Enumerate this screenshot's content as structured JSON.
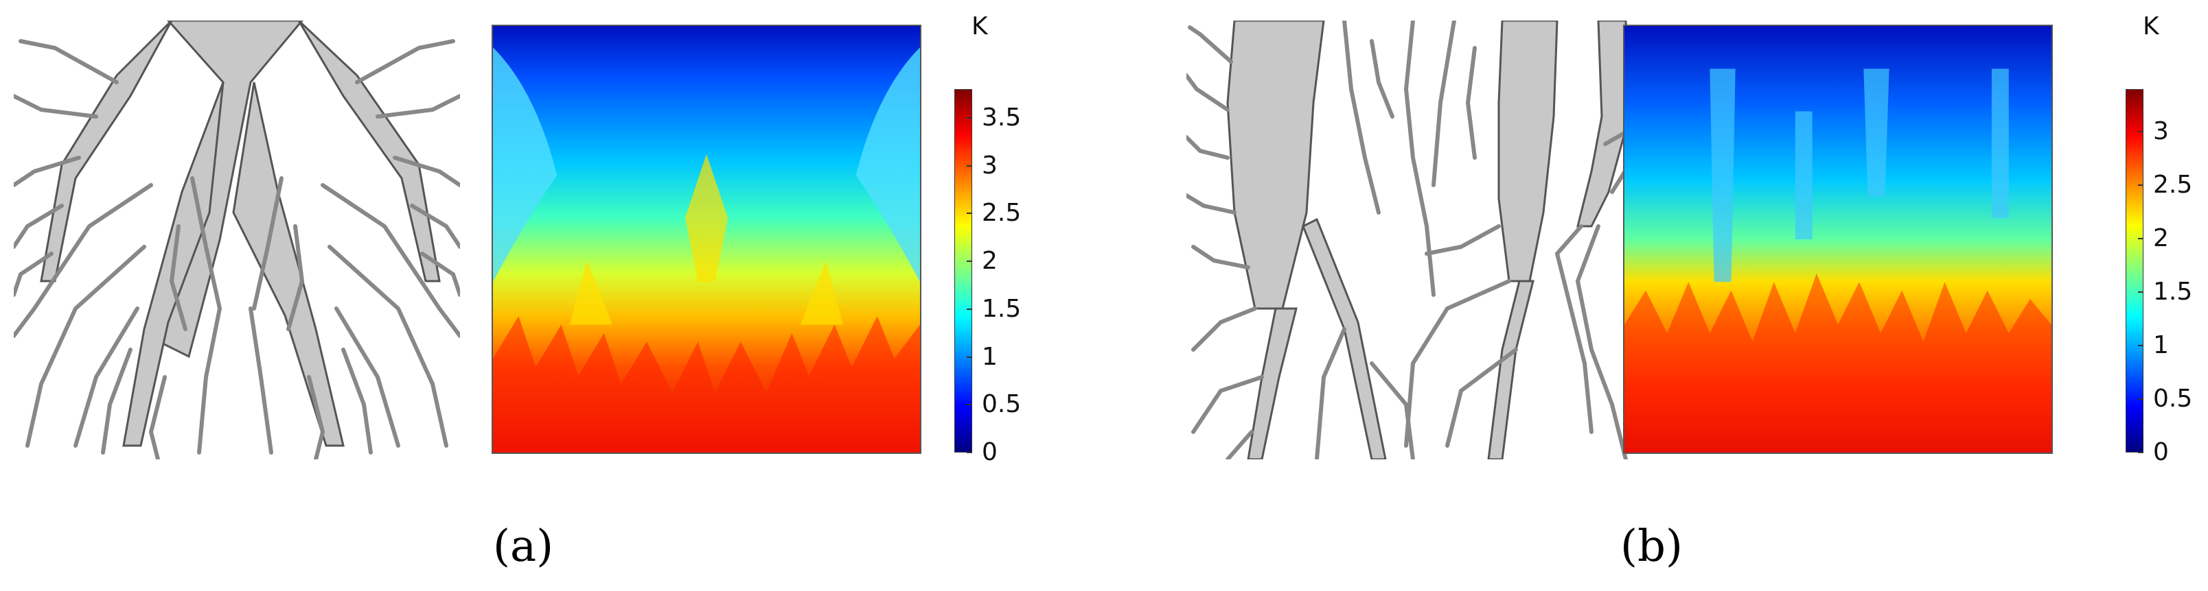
{
  "panels": [
    {
      "label": "(a)",
      "colorbar": {
        "unit": "K",
        "min": 0,
        "max": 3.8,
        "ticks": [
          "3.5",
          "3",
          "2.5",
          "2",
          "1.5",
          "1",
          "0.5",
          "0"
        ],
        "colors": [
          "#00007f",
          "#0000ff",
          "#0080ff",
          "#00ffff",
          "#80ff80",
          "#ffff00",
          "#ff8000",
          "#ff0000",
          "#800000"
        ]
      },
      "tree_color": "#c8c8c8",
      "outline_color": "#555555"
    },
    {
      "label": "(b)",
      "colorbar": {
        "unit": "K",
        "min": 0,
        "max": 3.4,
        "ticks": [
          "3",
          "2.5",
          "2",
          "1.5",
          "1",
          "0.5",
          "0"
        ],
        "colors": [
          "#00007f",
          "#0000ff",
          "#0080ff",
          "#00ffff",
          "#80ff80",
          "#ffff00",
          "#ff8000",
          "#ff0000",
          "#800000"
        ]
      },
      "tree_color": "#c8c8c8",
      "outline_color": "#555555"
    }
  ]
}
